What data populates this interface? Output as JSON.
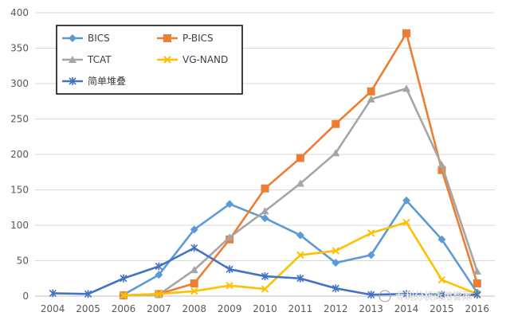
{
  "chart_data": {
    "type": "line",
    "title": "",
    "xlabel": "",
    "ylabel": "",
    "ylim": [
      0,
      400
    ],
    "yticks": [
      0,
      50,
      100,
      150,
      200,
      250,
      300,
      350,
      400
    ],
    "grid": true,
    "legend_position": "top-left",
    "categories": [
      "2004",
      "2005",
      "2006",
      "2007",
      "2008",
      "2009",
      "2010",
      "2011",
      "2012",
      "2013",
      "2014",
      "2015",
      "2016"
    ],
    "series": [
      {
        "name": "BICS",
        "color": "#5b9bd5",
        "marker": "diamond",
        "values": [
          null,
          null,
          2,
          30,
          94,
          130,
          110,
          86,
          47,
          58,
          135,
          80,
          5
        ]
      },
      {
        "name": "P-BICS",
        "color": "#ed7d31",
        "marker": "square",
        "values": [
          null,
          null,
          1,
          3,
          18,
          80,
          152,
          195,
          243,
          289,
          371,
          178,
          18
        ]
      },
      {
        "name": "TCAT",
        "color": "#a5a5a5",
        "marker": "triangle",
        "values": [
          null,
          null,
          1,
          2,
          37,
          83,
          120,
          159,
          202,
          278,
          293,
          185,
          35
        ]
      },
      {
        "name": "VG-NAND",
        "color": "#ffc000",
        "marker": "x",
        "values": [
          null,
          null,
          1,
          3,
          7,
          15,
          10,
          58,
          64,
          89,
          104,
          23,
          3
        ]
      },
      {
        "name": "简单堆叠",
        "color": "#4472c4",
        "marker": "star",
        "values": [
          4,
          3,
          25,
          42,
          68,
          38,
          28,
          25,
          11,
          2,
          3,
          2,
          2
        ]
      }
    ]
  },
  "watermark": "专利分析运用智库"
}
